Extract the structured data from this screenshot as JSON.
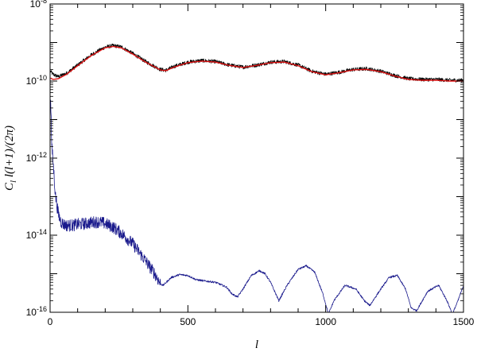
{
  "chart_data": {
    "type": "line",
    "title": "",
    "xlabel": "l",
    "ylabel": "C_l l(l+1)/(2π)",
    "ylabel_parts": {
      "main": "C",
      "sub": "l",
      "rest": " l(l+1)/(2π)"
    },
    "xlim": [
      0,
      1500
    ],
    "ylim": [
      1e-16,
      1e-08
    ],
    "yscale": "log",
    "grid": false,
    "legend": "none",
    "x_ticks": [
      {
        "value": 0,
        "label": "0"
      },
      {
        "value": 500,
        "label": "500"
      },
      {
        "value": 1000,
        "label": "1000"
      },
      {
        "value": 1500,
        "label": "1500"
      }
    ],
    "y_ticks": [
      {
        "value": 1e-08,
        "base": "10",
        "exp": "-8"
      },
      {
        "value": 1e-10,
        "base": "10",
        "exp": "-10"
      },
      {
        "value": 1e-12,
        "base": "10",
        "exp": "-12"
      },
      {
        "value": 1e-14,
        "base": "10",
        "exp": "-14"
      },
      {
        "value": 1e-16,
        "base": "10",
        "exp": "-16"
      }
    ],
    "series": [
      {
        "color": "#000000",
        "style": "noisy",
        "noise_decades": 0.05,
        "x": [
          2,
          10,
          30,
          60,
          100,
          150,
          200,
          230,
          260,
          300,
          350,
          400,
          420,
          450,
          500,
          550,
          600,
          650,
          700,
          750,
          800,
          850,
          900,
          950,
          1000,
          1050,
          1100,
          1150,
          1200,
          1250,
          1300,
          1350,
          1400,
          1450,
          1500
        ],
        "y": [
          1.8e-10,
          1.5e-10,
          1.3e-10,
          1.6e-10,
          2.6e-10,
          4.8e-10,
          7.6e-10,
          8.3e-10,
          7.6e-10,
          5.2e-10,
          3.1e-10,
          2e-10,
          1.9e-10,
          2.4e-10,
          3.1e-10,
          3.4e-10,
          3.2e-10,
          2.6e-10,
          2.3e-10,
          2.6e-10,
          3.1e-10,
          3.2e-10,
          2.6e-10,
          1.8e-10,
          1.5e-10,
          1.7e-10,
          2e-10,
          2.1e-10,
          1.8e-10,
          1.4e-10,
          1.15e-10,
          1.1e-10,
          1.1e-10,
          1.05e-10,
          1.05e-10
        ]
      },
      {
        "color": "#dd1111",
        "style": "smooth",
        "x": [
          2,
          10,
          30,
          60,
          100,
          150,
          200,
          230,
          260,
          300,
          350,
          400,
          420,
          450,
          500,
          550,
          600,
          650,
          700,
          750,
          800,
          850,
          900,
          950,
          1000,
          1050,
          1100,
          1150,
          1200,
          1250,
          1300,
          1350,
          1400,
          1450,
          1500
        ],
        "y": [
          1.2e-10,
          1.1e-10,
          1.15e-10,
          1.5e-10,
          2.5e-10,
          4.6e-10,
          7.3e-10,
          7.9e-10,
          7.2e-10,
          5e-10,
          3e-10,
          1.95e-10,
          1.85e-10,
          2.3e-10,
          3e-10,
          3.3e-10,
          3.1e-10,
          2.55e-10,
          2.25e-10,
          2.55e-10,
          3e-10,
          3.1e-10,
          2.5e-10,
          1.75e-10,
          1.45e-10,
          1.65e-10,
          1.95e-10,
          2e-10,
          1.75e-10,
          1.35e-10,
          1.1e-10,
          1.05e-10,
          1.05e-10,
          1e-10,
          1e-10
        ]
      },
      {
        "color": "#1a1a8c",
        "style": "noisy",
        "noise_decades": 0.16,
        "noise_until": 400,
        "x": [
          2,
          4,
          6,
          10,
          15,
          20,
          30,
          40,
          50,
          60,
          80,
          100,
          130,
          160,
          180,
          200,
          230,
          260,
          300,
          340,
          380,
          400,
          410,
          440,
          470,
          500,
          530,
          560,
          600,
          640,
          660,
          680,
          700,
          730,
          760,
          780,
          800,
          830,
          860,
          900,
          930,
          960,
          990,
          1010,
          1030,
          1070,
          1110,
          1140,
          1160,
          1200,
          1230,
          1260,
          1290,
          1310,
          1330,
          1370,
          1410,
          1440,
          1460,
          1480,
          1500
        ],
        "y": [
          4e-11,
          1e-11,
          2e-12,
          1e-12,
          3e-13,
          1e-13,
          3.5e-14,
          2.2e-14,
          1.9e-14,
          1.8e-14,
          1.8e-14,
          1.9e-14,
          2e-14,
          2.2e-14,
          2.2e-14,
          2e-14,
          1.6e-14,
          1.1e-14,
          6e-15,
          2.5e-15,
          1e-15,
          5.5e-16,
          5e-16,
          8e-16,
          9.5e-16,
          9e-16,
          7e-16,
          6.5e-16,
          6e-16,
          4.5e-16,
          3e-16,
          2.5e-16,
          4e-16,
          9e-16,
          1.2e-15,
          1e-15,
          6e-16,
          2e-16,
          5e-16,
          1.3e-15,
          1.6e-15,
          1.1e-15,
          3e-16,
          9e-17,
          2e-16,
          5e-16,
          4e-16,
          2e-16,
          1.5e-16,
          4e-16,
          8e-16,
          9e-16,
          4e-16,
          1.3e-16,
          1.1e-16,
          3.5e-16,
          5e-16,
          2e-16,
          9e-17,
          2e-16,
          5e-16
        ]
      }
    ]
  }
}
